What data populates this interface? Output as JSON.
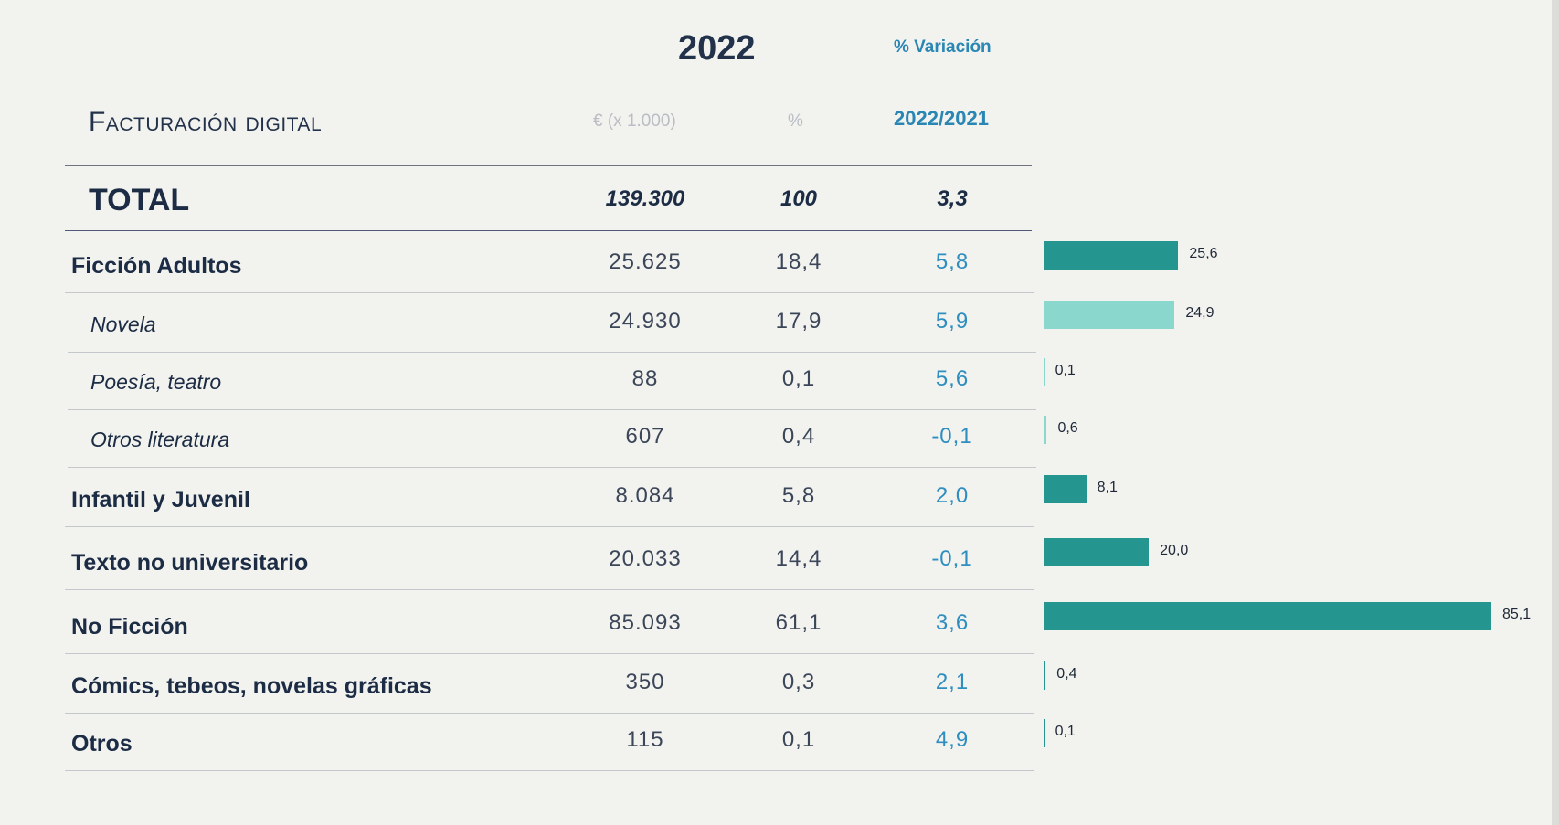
{
  "header": {
    "year": "2022",
    "variation_title": "% Variación",
    "variation_period": "2022/2021",
    "section_title": "Facturación digital",
    "unit_eur": "€ (x 1.000)",
    "unit_pct": "%"
  },
  "total": {
    "label": "TOTAL",
    "eur": "139.300",
    "pct": "100",
    "var": "3,3"
  },
  "rows": [
    {
      "label": "Ficción Adultos",
      "eur": "25.625",
      "pct": "18,4",
      "var": "5,8",
      "style": "main",
      "bar_value": 25.6,
      "bar_label": "25,6",
      "bar_color": "#24968f"
    },
    {
      "label": "Novela",
      "eur": "24.930",
      "pct": "17,9",
      "var": "5,9",
      "style": "sub",
      "bar_value": 24.9,
      "bar_label": "24,9",
      "bar_color": "#8ad7ce"
    },
    {
      "label": "Poesía, teatro",
      "eur": "88",
      "pct": "0,1",
      "var": "5,6",
      "style": "sub",
      "bar_value": 0.1,
      "bar_label": "0,1",
      "bar_color": "#8ad7ce"
    },
    {
      "label": "Otros literatura",
      "eur": "607",
      "pct": "0,4",
      "var": "-0,1",
      "style": "sub",
      "bar_value": 0.6,
      "bar_label": "0,6",
      "bar_color": "#8ad7ce"
    },
    {
      "label": "Infantil y Juvenil",
      "eur": "8.084",
      "pct": "5,8",
      "var": "2,0",
      "style": "main",
      "bar_value": 8.1,
      "bar_label": "8,1",
      "bar_color": "#24968f"
    },
    {
      "label": "Texto no universitario",
      "eur": "20.033",
      "pct": "14,4",
      "var": "-0,1",
      "style": "main",
      "bar_value": 20.0,
      "bar_label": "20,0",
      "bar_color": "#24968f"
    },
    {
      "label": "No Ficción",
      "eur": "85.093",
      "pct": "61,1",
      "var": "3,6",
      "style": "main",
      "bar_value": 85.1,
      "bar_label": "85,1",
      "bar_color": "#24968f"
    },
    {
      "label": "Cómics, tebeos, novelas gráficas",
      "eur": "350",
      "pct": "0,3",
      "var": "2,1",
      "style": "main",
      "bar_value": 0.4,
      "bar_label": "0,4",
      "bar_color": "#24968f"
    },
    {
      "label": "Otros",
      "eur": "115",
      "pct": "0,1",
      "var": "4,9",
      "style": "main",
      "bar_value": 0.1,
      "bar_label": "0,1",
      "bar_color": "#24968f"
    }
  ]
}
